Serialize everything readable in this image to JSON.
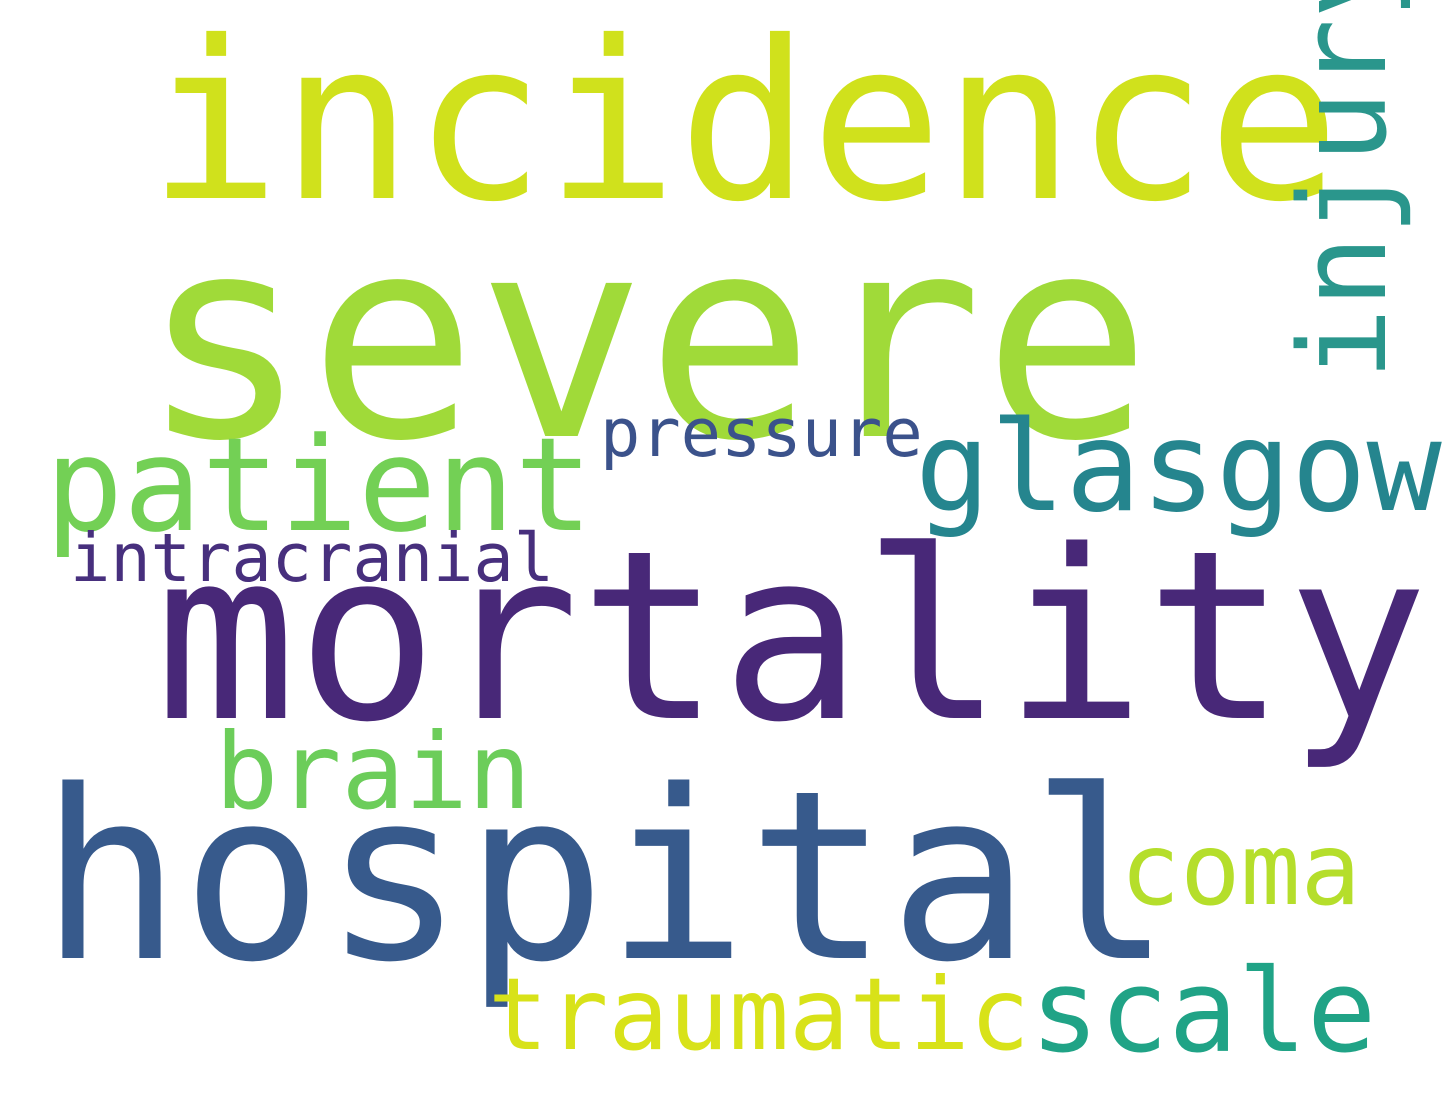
{
  "words": {
    "severe": {
      "text": "severe",
      "color": "#a0da39"
    },
    "incidence": {
      "text": "incidence",
      "color": "#d0e11c"
    },
    "mortality": {
      "text": "mortality",
      "color": "#482878"
    },
    "hospital": {
      "text": "hospital",
      "color": "#375a8c"
    },
    "patient": {
      "text": "patient",
      "color": "#73d055"
    },
    "glasgow": {
      "text": "glasgow",
      "color": "#25858e"
    },
    "pressure": {
      "text": "pressure",
      "color": "#3b528b"
    },
    "intracranial": {
      "text": "intracranial",
      "color": "#472f7d"
    },
    "brain": {
      "text": "brain",
      "color": "#6ccd5a"
    },
    "coma": {
      "text": "coma",
      "color": "#b5de2b"
    },
    "traumatic": {
      "text": "traumatic",
      "color": "#d8e219"
    },
    "scale": {
      "text": "scale",
      "color": "#20a386"
    },
    "injury": {
      "text": "injury",
      "color": "#2a968c",
      "orientation": "vertical"
    }
  }
}
